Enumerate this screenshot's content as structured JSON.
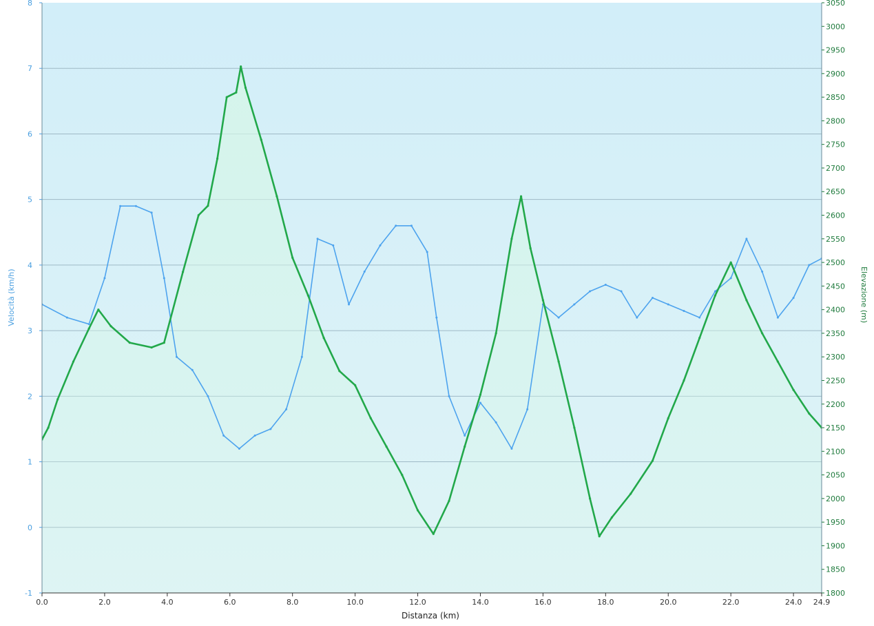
{
  "chart_data": {
    "type": "line",
    "xlabel": "Distanza  (km)",
    "ylabel_left": "Velocità (km/h)",
    "ylabel_right": "Elevazione (m)",
    "xlim": [
      0,
      24.9
    ],
    "ylim_left": [
      -1,
      8
    ],
    "ylim_right": [
      1800,
      3050
    ],
    "x_ticks": [
      "0.0",
      "2.0",
      "4.0",
      "6.0",
      "8.0",
      "10.0",
      "12.0",
      "14.0",
      "16.0",
      "18.0",
      "20.0",
      "22.0",
      "24.0",
      "24.9"
    ],
    "x_tick_values": [
      0,
      2,
      4,
      6,
      8,
      10,
      12,
      14,
      16,
      18,
      20,
      22,
      24,
      24.9
    ],
    "y_left_ticks": [
      "-1",
      "0",
      "1",
      "2",
      "3",
      "4",
      "5",
      "6",
      "7",
      "8"
    ],
    "y_right_ticks": [
      "1800",
      "1850",
      "1900",
      "1950",
      "2000",
      "2050",
      "2100",
      "2150",
      "2200",
      "2250",
      "2300",
      "2350",
      "2400",
      "2450",
      "2500",
      "2550",
      "2600",
      "2650",
      "2700",
      "2750",
      "2800",
      "2850",
      "2900",
      "2950",
      "3000",
      "3050"
    ],
    "grid": "horizontal",
    "colors": {
      "speed": "#4da3ee",
      "elevation": "#22a84a",
      "background_top": "#d2eef9",
      "background_bottom": "#dff4f6"
    },
    "series": [
      {
        "axis": "right",
        "x": [
          0,
          0.2,
          0.5,
          1.0,
          1.5,
          1.8,
          2.2,
          2.8,
          3.5,
          3.9,
          4.5,
          5.0,
          5.3,
          5.6,
          5.9,
          6.2,
          6.35,
          6.5,
          7.0,
          7.5,
          8.0,
          8.5,
          9.0,
          9.5,
          10.0,
          10.5,
          11.0,
          11.5,
          12.0,
          12.5,
          13.0,
          13.5,
          14.0,
          14.5,
          15.0,
          15.3,
          15.6,
          16.0,
          16.5,
          17.0,
          17.5,
          17.8,
          18.2,
          18.8,
          19.5,
          20.0,
          20.5,
          21.0,
          21.5,
          22.0,
          22.5,
          23.0,
          23.5,
          24.0,
          24.5,
          24.9
        ],
        "values": [
          2125,
          2150,
          2210,
          2290,
          2360,
          2400,
          2365,
          2330,
          2320,
          2330,
          2480,
          2600,
          2620,
          2720,
          2850,
          2860,
          2915,
          2870,
          2760,
          2640,
          2510,
          2430,
          2340,
          2270,
          2240,
          2170,
          2110,
          2050,
          1975,
          1925,
          1995,
          2110,
          2220,
          2350,
          2550,
          2640,
          2530,
          2420,
          2290,
          2150,
          2000,
          1920,
          1960,
          2010,
          2080,
          2170,
          2250,
          2340,
          2430,
          2500,
          2420,
          2350,
          2290,
          2230,
          2180,
          2150
        ]
      },
      {
        "axis": "left",
        "x": [
          0,
          0.8,
          1.5,
          2.0,
          2.5,
          3.0,
          3.5,
          3.9,
          4.3,
          4.8,
          5.3,
          5.8,
          6.3,
          6.8,
          7.3,
          7.8,
          8.3,
          8.8,
          9.3,
          9.8,
          10.3,
          10.8,
          11.3,
          11.8,
          12.3,
          12.6,
          13.0,
          13.5,
          14.0,
          14.5,
          15.0,
          15.5,
          16.0,
          16.5,
          17.0,
          17.5,
          18.0,
          18.5,
          19.0,
          19.5,
          20.0,
          20.5,
          21.0,
          21.5,
          22.0,
          22.5,
          23.0,
          23.5,
          24.0,
          24.5,
          24.9
        ],
        "values": [
          3.4,
          3.2,
          3.1,
          3.8,
          4.9,
          4.9,
          4.8,
          3.8,
          2.6,
          2.4,
          2.0,
          1.4,
          1.2,
          1.4,
          1.5,
          1.8,
          2.6,
          4.4,
          4.3,
          3.4,
          3.9,
          4.3,
          4.6,
          4.6,
          4.2,
          3.2,
          2.0,
          1.4,
          1.9,
          1.6,
          1.2,
          1.8,
          3.4,
          3.2,
          3.4,
          3.6,
          3.7,
          3.6,
          3.2,
          3.5,
          3.4,
          3.3,
          3.2,
          3.6,
          3.8,
          4.4,
          3.9,
          3.2,
          3.5,
          4.0,
          4.1
        ]
      }
    ]
  }
}
